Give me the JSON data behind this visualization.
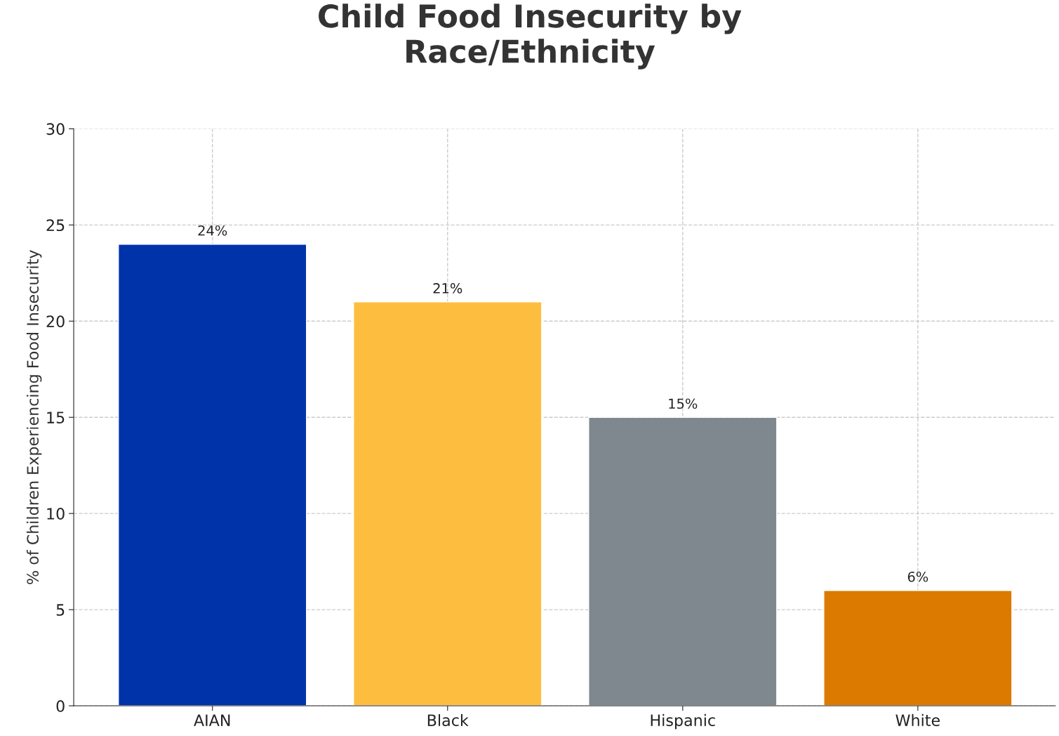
{
  "chart_data": {
    "type": "bar",
    "title": "Child Food Insecurity by\nRace/Ethnicity",
    "ylabel": "% of Children Experiencing Food Insecurity",
    "categories": [
      "AIAN",
      "Black",
      "Hispanic",
      "White"
    ],
    "values": [
      24,
      21,
      15,
      6
    ],
    "colors": [
      "#0033aa",
      "#fdbe40",
      "#7f888f",
      "#dc7a00"
    ],
    "value_labels": [
      "24%",
      "21%",
      "15%",
      "6%"
    ],
    "ylim": [
      0,
      30
    ],
    "yticks": [
      0,
      5,
      10,
      15,
      20,
      25,
      30
    ],
    "grid": true,
    "legend": false
  }
}
